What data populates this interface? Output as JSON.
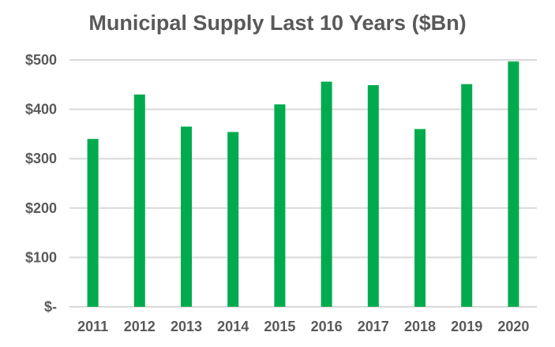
{
  "chart_data": {
    "type": "bar",
    "title": "Municipal Supply Last 10 Years ($Bn)",
    "xlabel": "",
    "ylabel": "",
    "categories": [
      "2011",
      "2012",
      "2013",
      "2014",
      "2015",
      "2016",
      "2017",
      "2018",
      "2019",
      "2020"
    ],
    "values": [
      340,
      430,
      365,
      354,
      410,
      456,
      449,
      360,
      451,
      497
    ],
    "ylim": [
      0,
      500
    ],
    "yticks": [
      0,
      100,
      200,
      300,
      400,
      500
    ],
    "ytick_labels": [
      "$-",
      "$100",
      "$200",
      "$300",
      "$400",
      "$500"
    ],
    "grid": true,
    "legend": "none",
    "bar_color": "#00AB4E",
    "grid_color": "#D9D9D9"
  }
}
